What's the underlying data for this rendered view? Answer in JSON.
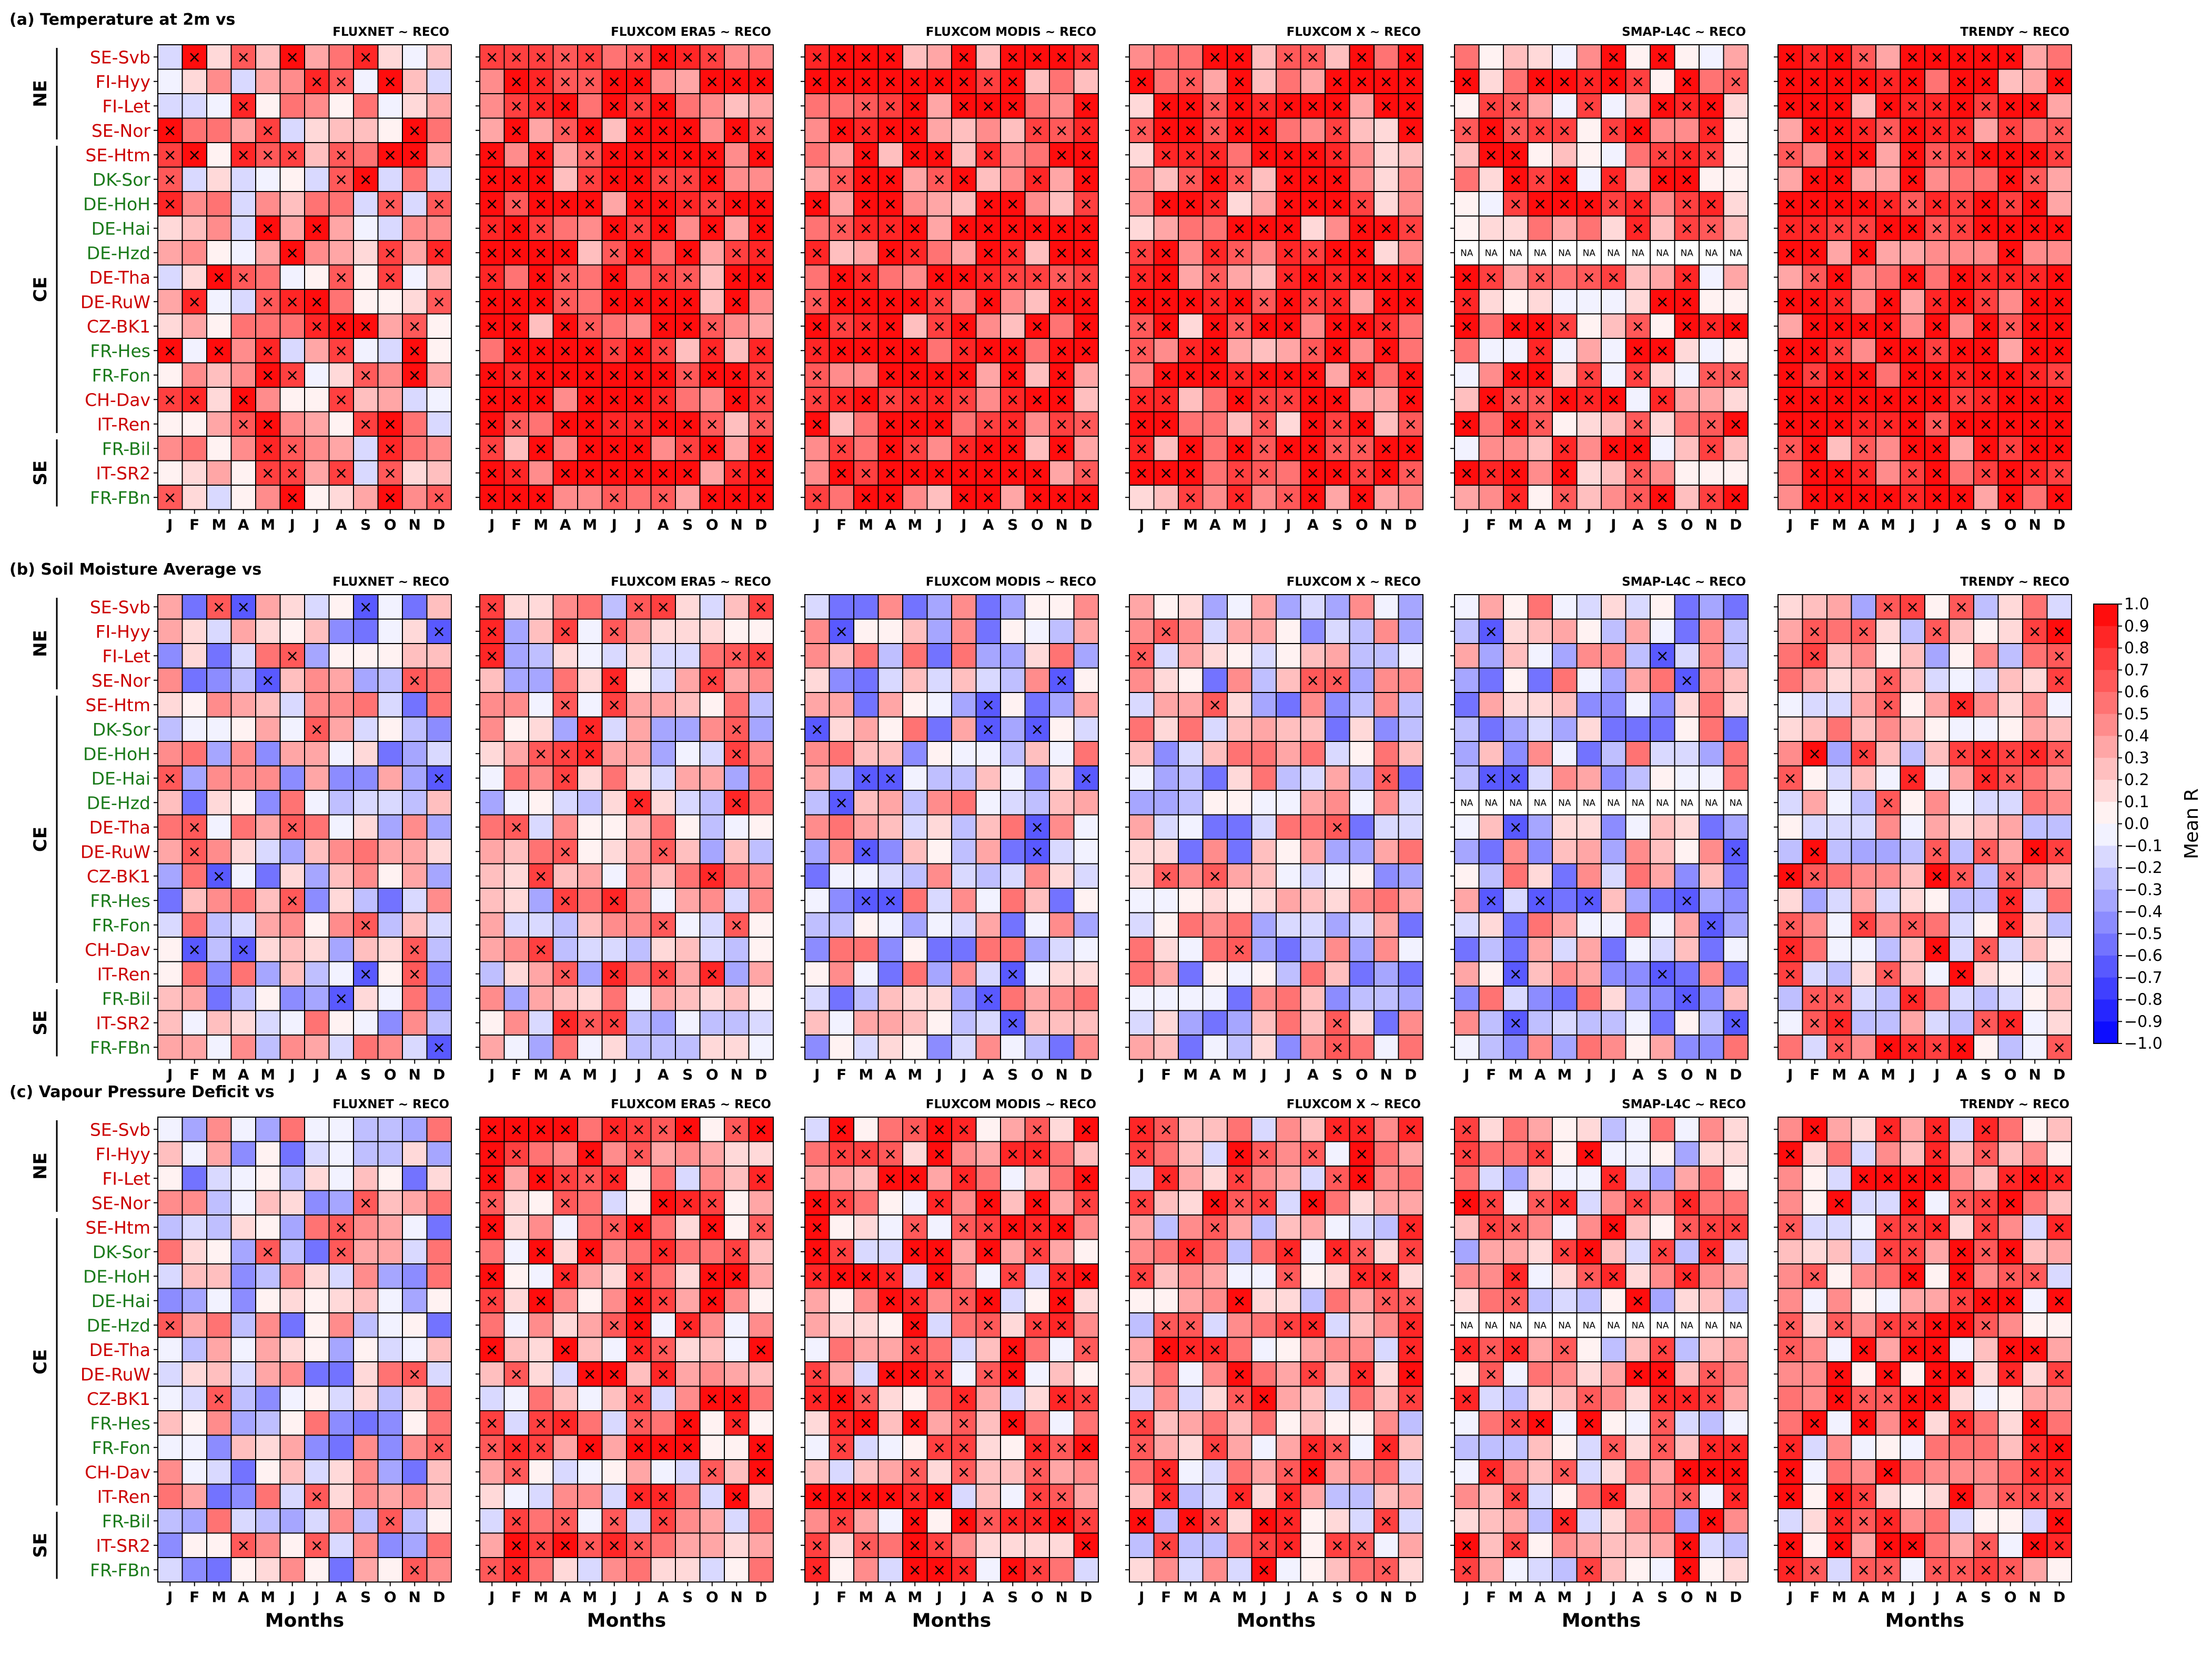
{
  "chart_data": {
    "type": "heatmap",
    "rows": [
      "SE-Svb",
      "FI-Hyy",
      "FI-Let",
      "SE-Nor",
      "SE-Htm",
      "DK-Sor",
      "DE-HoH",
      "DE-Hai",
      "DE-Hzd",
      "DE-Tha",
      "DE-RuW",
      "CZ-BK1",
      "FR-Hes",
      "FR-Fon",
      "CH-Dav",
      "IT-Ren",
      "FR-Bil",
      "IT-SR2",
      "FR-FBn"
    ],
    "row_colors": [
      "#cc0000",
      "#cc0000",
      "#cc0000",
      "#cc0000",
      "#cc0000",
      "#1a7a1a",
      "#1a7a1a",
      "#1a7a1a",
      "#1a7a1a",
      "#cc0000",
      "#cc0000",
      "#cc0000",
      "#1a7a1a",
      "#1a7a1a",
      "#cc0000",
      "#cc0000",
      "#1a7a1a",
      "#cc0000",
      "#1a7a1a"
    ],
    "regions": [
      {
        "label": "NE",
        "start": 0,
        "end": 3
      },
      {
        "label": "CE",
        "start": 4,
        "end": 15
      },
      {
        "label": "SE",
        "start": 16,
        "end": 18
      }
    ],
    "months": [
      "J",
      "F",
      "M",
      "A",
      "M",
      "J",
      "J",
      "A",
      "S",
      "O",
      "N",
      "D"
    ],
    "xlabel": "Months",
    "na_label": "NA",
    "na_row": "DE-Hzd",
    "na_panel": "SMAP-L4C ~ RECO",
    "colorbar": {
      "label": "Mean R",
      "range": [
        -1.0,
        1.0
      ],
      "ticks": [
        "1.0",
        "0.9",
        "0.8",
        "0.7",
        "0.6",
        "0.5",
        "0.4",
        "0.3",
        "0.2",
        "0.1",
        "0.0",
        "−0.1",
        "−0.2",
        "−0.3",
        "−0.4",
        "−0.5",
        "−0.6",
        "−0.7",
        "−0.8",
        "−0.9",
        "−1.0"
      ],
      "colors": {
        "high": "#ff0000",
        "mid": "#ffffff",
        "low": "#0000ff"
      }
    },
    "panels": [
      {
        "label": "(a) Temperature at 2m vs",
        "mean": [
          0.45,
          0.9,
          0.85,
          0.75,
          0.55,
          0.9
        ]
      },
      {
        "label": "(b) Soil Moisture Average vs",
        "mean": [
          0.0,
          0.25,
          -0.05,
          0.05,
          -0.05,
          0.3
        ]
      },
      {
        "label": "(c) Vapour Pressure Deficit vs",
        "mean": [
          0.05,
          0.45,
          0.45,
          0.35,
          0.3,
          0.45
        ]
      }
    ],
    "columns": [
      "FLUXNET ~ RECO",
      "FLUXCOM ERA5 ~ RECO",
      "FLUXCOM MODIS ~ RECO",
      "FLUXCOM X ~ RECO",
      "SMAP-L4C ~ RECO",
      "TRENDY ~ RECO"
    ]
  }
}
